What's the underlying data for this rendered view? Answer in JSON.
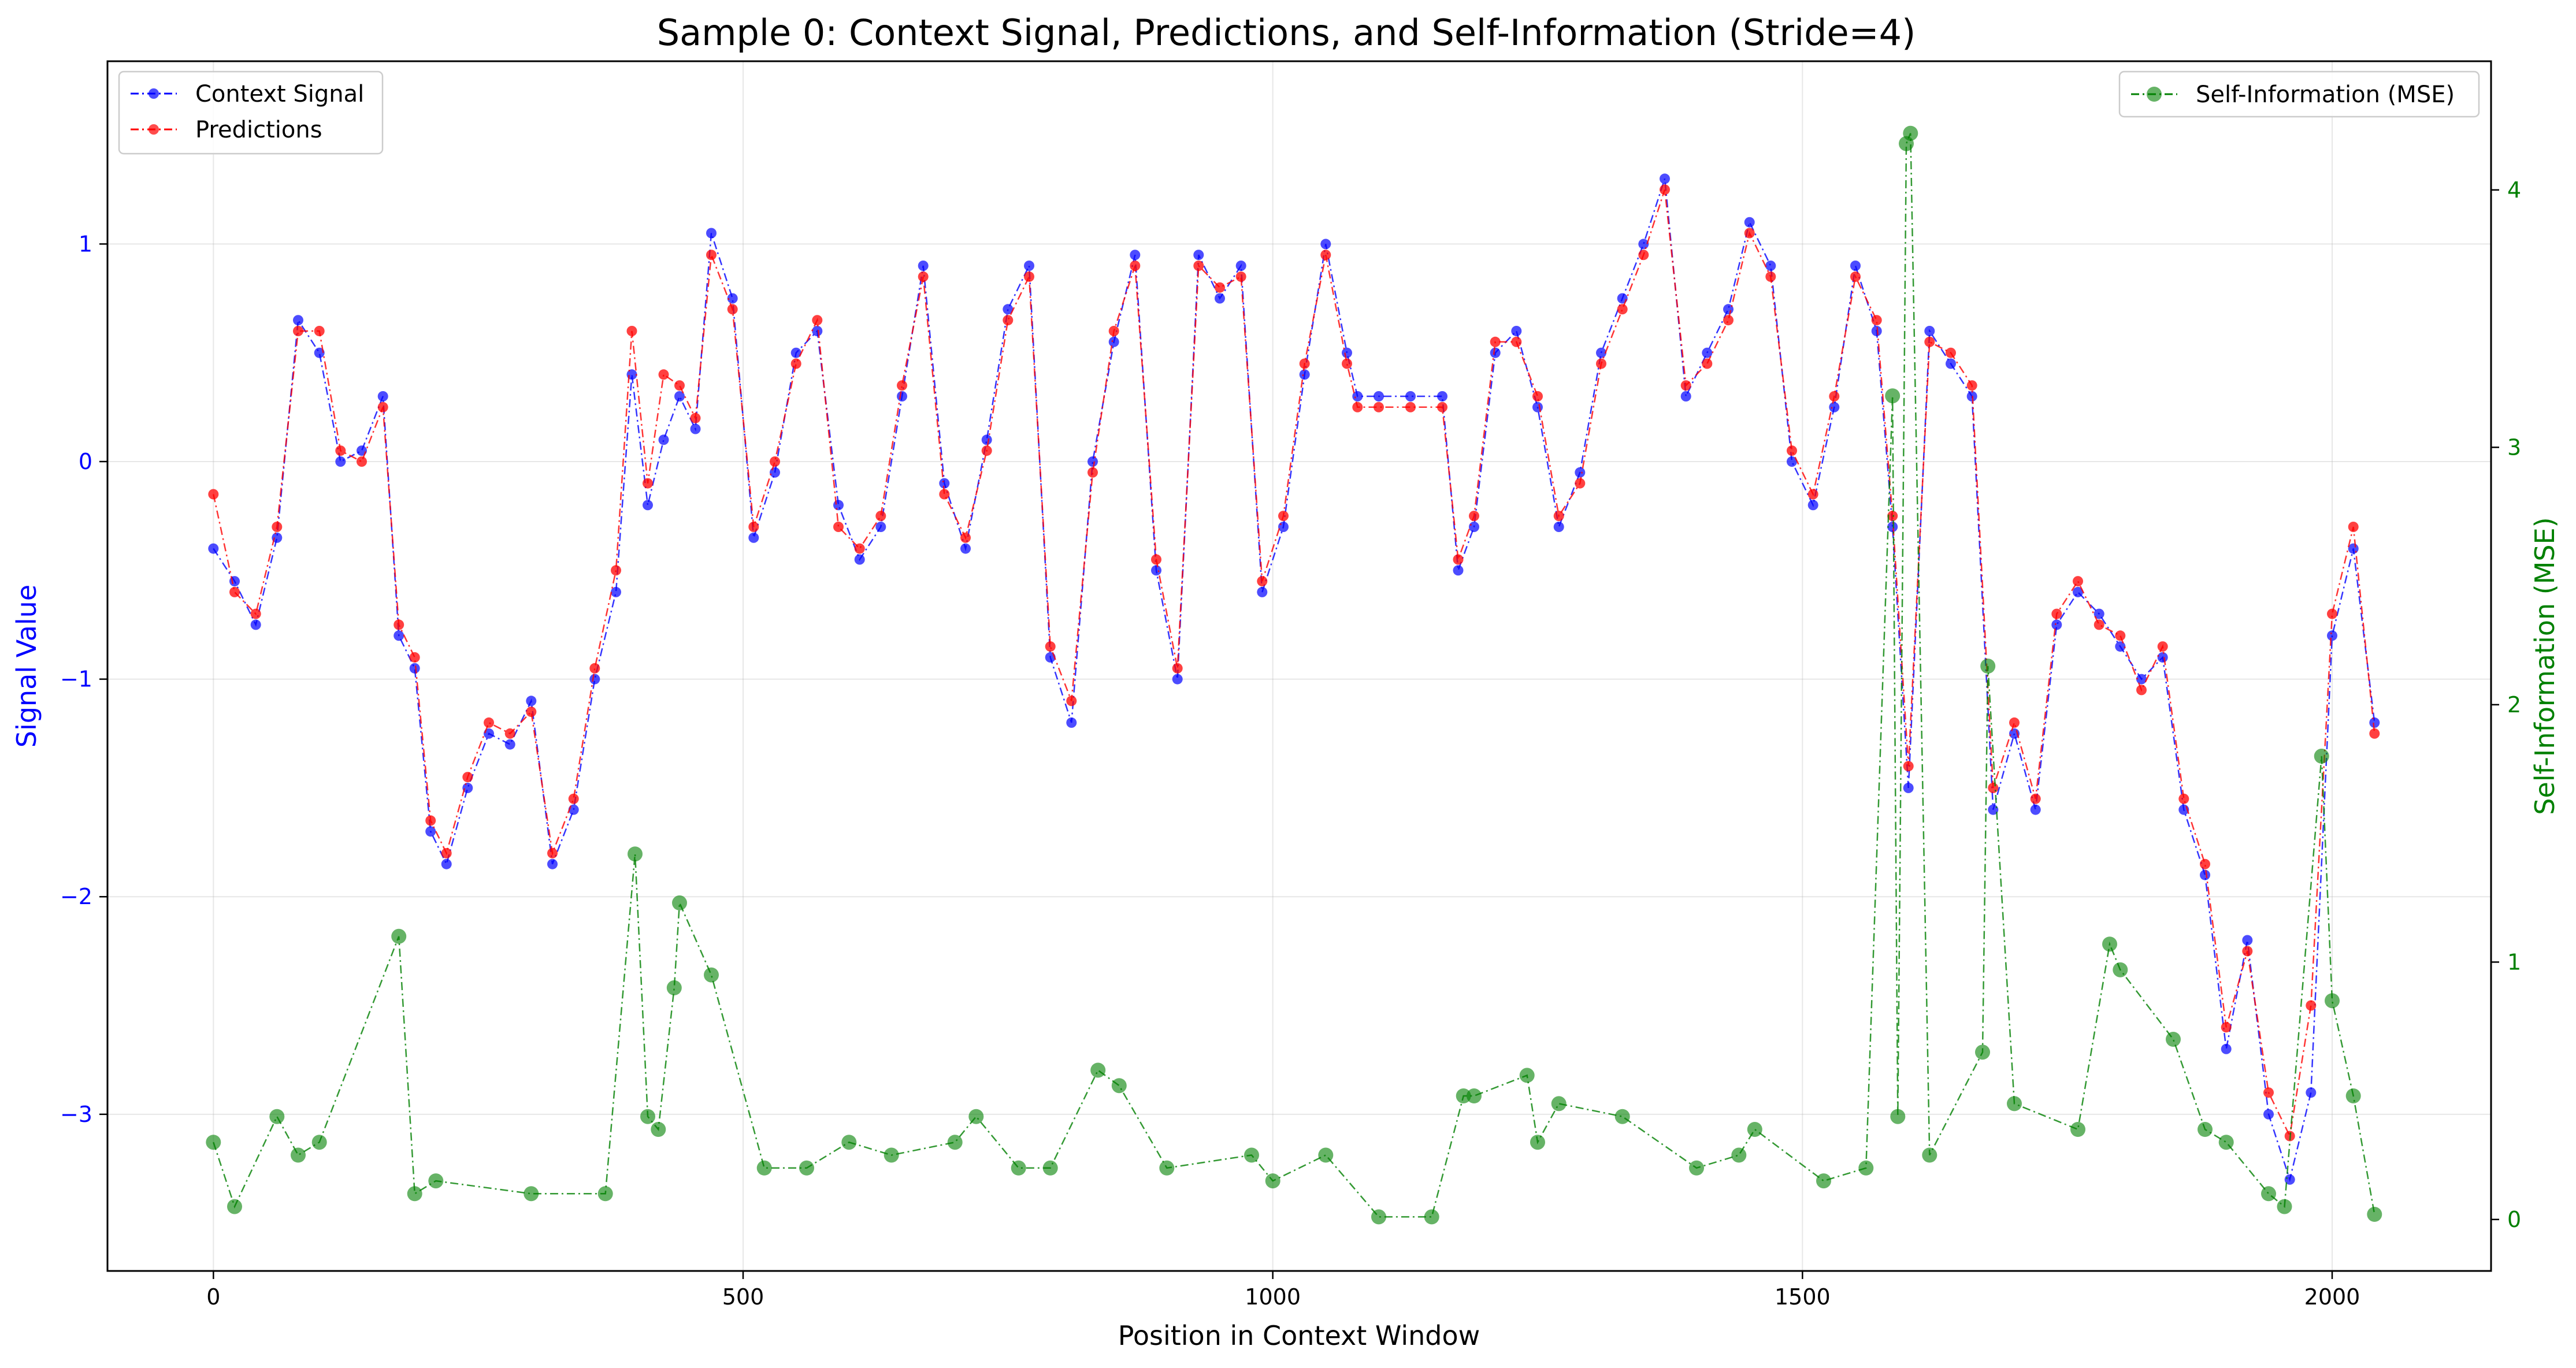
{
  "chart_data": {
    "type": "line",
    "title": "Sample 0: Context Signal, Predictions, and Self-Information (Stride=4)",
    "xlabel": "Position in Context Window",
    "ylabel_left": "Signal Value",
    "ylabel_right": "Self-Information (MSE)",
    "xlim": [
      -100,
      2150
    ],
    "ylim_left": [
      -3.72,
      1.84
    ],
    "ylim_right": [
      -0.2,
      4.5
    ],
    "x_ticks": [
      0,
      500,
      1000,
      1500,
      2000
    ],
    "x_tick_labels": [
      "0",
      "500",
      "1000",
      "1500",
      "2000"
    ],
    "y_left_ticks": [
      -3,
      -2,
      -1,
      0,
      1
    ],
    "y_left_tick_labels": [
      "−3",
      "−2",
      "−1",
      "0",
      "1"
    ],
    "y_right_ticks": [
      0,
      1,
      2,
      3,
      4
    ],
    "y_right_tick_labels": [
      "0",
      "1",
      "2",
      "3",
      "4"
    ],
    "grid": true,
    "legend_left": {
      "placement": "top-left",
      "entries": [
        "Context Signal",
        "Predictions"
      ]
    },
    "legend_right": {
      "placement": "top-right",
      "entries": [
        "Self-Information (MSE)"
      ]
    },
    "colors": {
      "context": "#0000ff",
      "predictions": "#ff0000",
      "self_info": "#008000",
      "left_axis_text": "#0000ff",
      "right_axis_text": "#008000"
    },
    "series": [
      {
        "name": "Context Signal",
        "axis": "left",
        "x": [
          0,
          20,
          40,
          60,
          80,
          100,
          120,
          140,
          160,
          175,
          190,
          205,
          220,
          240,
          260,
          280,
          300,
          320,
          340,
          360,
          380,
          395,
          410,
          425,
          440,
          455,
          470,
          490,
          510,
          530,
          550,
          570,
          590,
          610,
          630,
          650,
          670,
          690,
          710,
          730,
          750,
          770,
          790,
          810,
          830,
          850,
          870,
          890,
          910,
          930,
          950,
          970,
          990,
          1010,
          1030,
          1050,
          1070,
          1080,
          1100,
          1130,
          1160,
          1175,
          1190,
          1210,
          1230,
          1250,
          1270,
          1290,
          1310,
          1330,
          1350,
          1370,
          1390,
          1410,
          1430,
          1450,
          1470,
          1490,
          1510,
          1530,
          1550,
          1570,
          1585,
          1600,
          1620,
          1640,
          1660,
          1680,
          1700,
          1720,
          1740,
          1760,
          1780,
          1800,
          1820,
          1840,
          1860,
          1880,
          1900,
          1920,
          1940,
          1960,
          1980,
          2000,
          2020,
          2040
        ],
        "y": [
          -0.4,
          -0.55,
          -0.75,
          -0.35,
          0.65,
          0.5,
          0.0,
          0.05,
          0.3,
          -0.8,
          -0.95,
          -1.7,
          -1.85,
          -1.5,
          -1.25,
          -1.3,
          -1.1,
          -1.85,
          -1.6,
          -1.0,
          -0.6,
          0.4,
          -0.2,
          0.1,
          0.3,
          0.15,
          1.05,
          0.75,
          -0.35,
          -0.05,
          0.5,
          0.6,
          -0.2,
          -0.45,
          -0.3,
          0.3,
          0.9,
          -0.1,
          -0.4,
          0.1,
          0.7,
          0.9,
          -0.9,
          -1.2,
          0.0,
          0.55,
          0.95,
          -0.5,
          -1.0,
          0.95,
          0.75,
          0.9,
          -0.6,
          -0.3,
          0.4,
          1.0,
          0.5,
          0.3,
          0.3,
          0.3,
          0.3,
          -0.5,
          -0.3,
          0.5,
          0.6,
          0.25,
          -0.3,
          -0.05,
          0.5,
          0.75,
          1.0,
          1.3,
          0.3,
          0.5,
          0.7,
          1.1,
          0.9,
          0.0,
          -0.2,
          0.25,
          0.9,
          0.6,
          -0.3,
          -1.5,
          0.6,
          0.45,
          0.3,
          -1.6,
          -1.25,
          -1.6,
          -0.75,
          -0.6,
          -0.7,
          -0.85,
          -1.0,
          -0.9,
          -1.6,
          -1.9,
          -2.7,
          -2.2,
          -3.0,
          -3.3,
          -2.9,
          -0.8,
          -0.4,
          -1.2
        ]
      },
      {
        "name": "Predictions",
        "axis": "left",
        "x": [
          0,
          20,
          40,
          60,
          80,
          100,
          120,
          140,
          160,
          175,
          190,
          205,
          220,
          240,
          260,
          280,
          300,
          320,
          340,
          360,
          380,
          395,
          410,
          425,
          440,
          455,
          470,
          490,
          510,
          530,
          550,
          570,
          590,
          610,
          630,
          650,
          670,
          690,
          710,
          730,
          750,
          770,
          790,
          810,
          830,
          850,
          870,
          890,
          910,
          930,
          950,
          970,
          990,
          1010,
          1030,
          1050,
          1070,
          1080,
          1100,
          1130,
          1160,
          1175,
          1190,
          1210,
          1230,
          1250,
          1270,
          1290,
          1310,
          1330,
          1350,
          1370,
          1390,
          1410,
          1430,
          1450,
          1470,
          1490,
          1510,
          1530,
          1550,
          1570,
          1585,
          1600,
          1620,
          1640,
          1660,
          1680,
          1700,
          1720,
          1740,
          1760,
          1780,
          1800,
          1820,
          1840,
          1860,
          1880,
          1900,
          1920,
          1940,
          1960,
          1980,
          2000,
          2020,
          2040
        ],
        "y": [
          -0.15,
          -0.6,
          -0.7,
          -0.3,
          0.6,
          0.6,
          0.05,
          0.0,
          0.25,
          -0.75,
          -0.9,
          -1.65,
          -1.8,
          -1.45,
          -1.2,
          -1.25,
          -1.15,
          -1.8,
          -1.55,
          -0.95,
          -0.5,
          0.6,
          -0.1,
          0.4,
          0.35,
          0.2,
          0.95,
          0.7,
          -0.3,
          0.0,
          0.45,
          0.65,
          -0.3,
          -0.4,
          -0.25,
          0.35,
          0.85,
          -0.15,
          -0.35,
          0.05,
          0.65,
          0.85,
          -0.85,
          -1.1,
          -0.05,
          0.6,
          0.9,
          -0.45,
          -0.95,
          0.9,
          0.8,
          0.85,
          -0.55,
          -0.25,
          0.45,
          0.95,
          0.45,
          0.25,
          0.25,
          0.25,
          0.25,
          -0.45,
          -0.25,
          0.55,
          0.55,
          0.3,
          -0.25,
          -0.1,
          0.45,
          0.7,
          0.95,
          1.25,
          0.35,
          0.45,
          0.65,
          1.05,
          0.85,
          0.05,
          -0.15,
          0.3,
          0.85,
          0.65,
          -0.25,
          -1.4,
          0.55,
          0.5,
          0.35,
          -1.5,
          -1.2,
          -1.55,
          -0.7,
          -0.55,
          -0.75,
          -0.8,
          -1.05,
          -0.85,
          -1.55,
          -1.85,
          -2.6,
          -2.25,
          -2.9,
          -3.1,
          -2.5,
          -0.7,
          -0.3,
          -1.25
        ]
      },
      {
        "name": "Self-Information (MSE)",
        "axis": "right",
        "x": [
          0,
          20,
          60,
          80,
          100,
          175,
          190,
          210,
          300,
          370,
          398,
          410,
          420,
          435,
          440,
          470,
          520,
          560,
          600,
          640,
          700,
          720,
          760,
          790,
          835,
          855,
          900,
          980,
          1000,
          1050,
          1100,
          1150,
          1180,
          1190,
          1240,
          1250,
          1270,
          1330,
          1400,
          1440,
          1455,
          1520,
          1560,
          1585,
          1590,
          1598,
          1602,
          1620,
          1670,
          1675,
          1700,
          1760,
          1790,
          1800,
          1850,
          1880,
          1900,
          1940,
          1955,
          1990,
          2000,
          2020,
          2040
        ],
        "y": [
          0.3,
          0.05,
          0.4,
          0.25,
          0.3,
          1.1,
          0.1,
          0.15,
          0.1,
          0.1,
          1.42,
          0.4,
          0.35,
          0.9,
          1.23,
          0.95,
          0.2,
          0.2,
          0.3,
          0.25,
          0.3,
          0.4,
          0.2,
          0.2,
          0.58,
          0.52,
          0.2,
          0.25,
          0.15,
          0.25,
          0.01,
          0.01,
          0.48,
          0.48,
          0.56,
          0.3,
          0.45,
          0.4,
          0.2,
          0.25,
          0.35,
          0.15,
          0.2,
          3.2,
          0.4,
          4.18,
          4.22,
          0.25,
          0.65,
          2.15,
          0.45,
          0.35,
          1.07,
          0.97,
          0.7,
          0.35,
          0.3,
          0.1,
          0.05,
          1.8,
          0.85,
          0.48,
          0.02
        ]
      }
    ]
  }
}
